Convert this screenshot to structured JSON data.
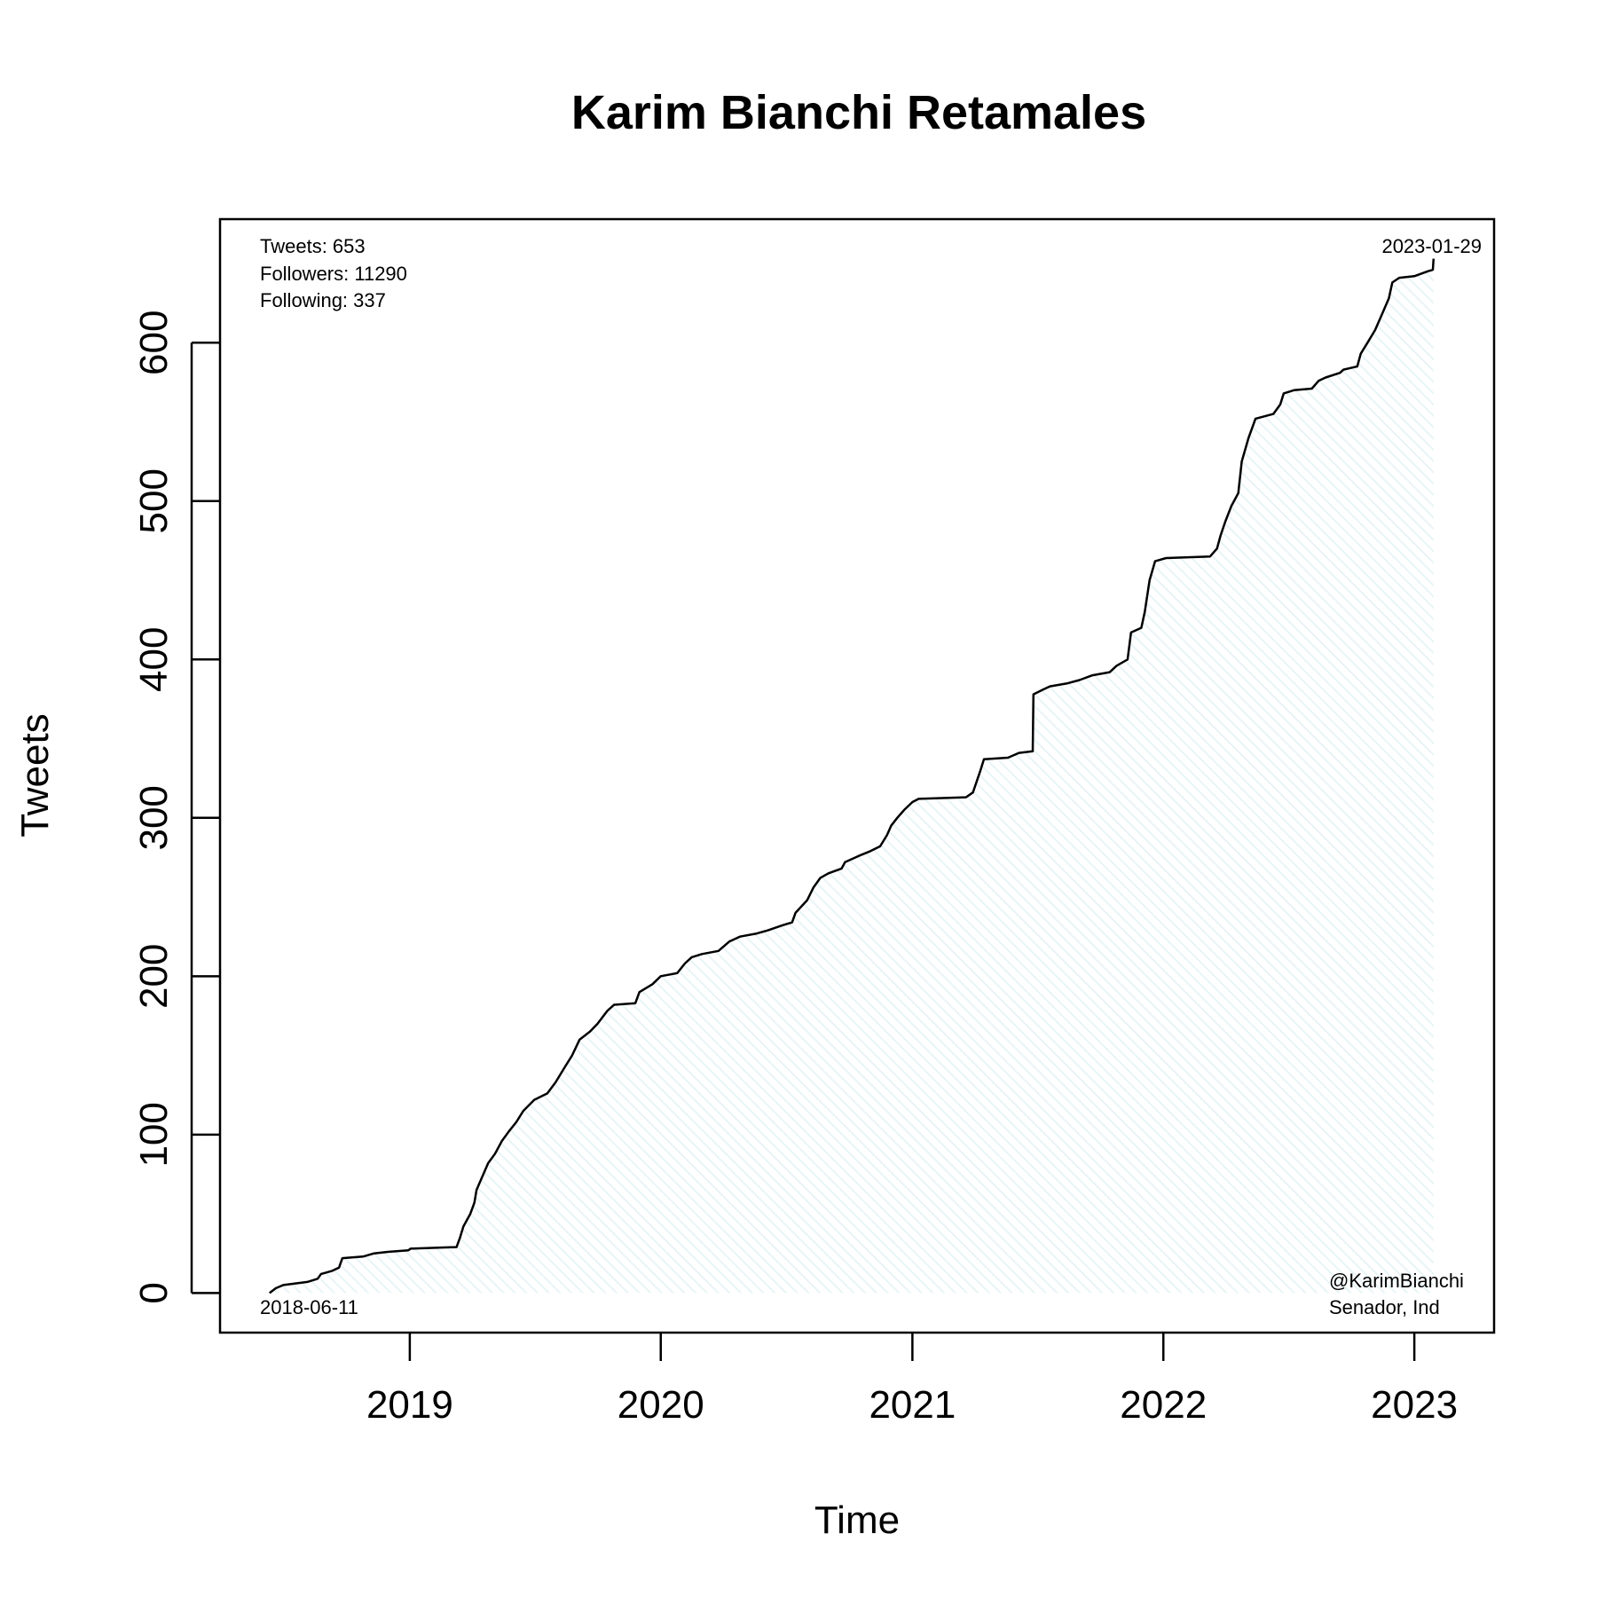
{
  "chart_data": {
    "type": "area",
    "title": "Karim Bianchi Retamales",
    "xlabel": "Time",
    "ylabel": "Tweets",
    "x_ticks": [
      "2019",
      "2020",
      "2021",
      "2022",
      "2023"
    ],
    "y_ticks": [
      0,
      100,
      200,
      300,
      400,
      500,
      600
    ],
    "xlim": [
      "2018-03-31",
      "2023-04-27"
    ],
    "ylim": [
      -25,
      678
    ],
    "grid": false,
    "line_color": "#000000",
    "fill_color": "#e8f4f6",
    "stats": {
      "tweets": "Tweets: 653",
      "followers": "Followers: 11290",
      "following": "Following: 337"
    },
    "start_label": "2018-06-11",
    "end_label": "2023-01-29",
    "handle": "@KarimBianchi",
    "role": "Senador, Ind",
    "series": [
      {
        "points": [
          [
            "2018-06-11",
            0
          ],
          [
            "2018-06-20",
            3
          ],
          [
            "2018-07-01",
            5
          ],
          [
            "2018-08-05",
            7
          ],
          [
            "2018-08-20",
            9
          ],
          [
            "2018-08-25",
            12
          ],
          [
            "2018-09-10",
            14
          ],
          [
            "2018-09-20",
            16
          ],
          [
            "2018-09-25",
            22
          ],
          [
            "2018-10-25",
            23
          ],
          [
            "2018-11-10",
            25
          ],
          [
            "2018-11-30",
            26
          ],
          [
            "2018-12-30",
            27
          ],
          [
            "2019-01-02",
            28
          ],
          [
            "2019-03-10",
            29
          ],
          [
            "2019-03-15",
            35
          ],
          [
            "2019-03-20",
            42
          ],
          [
            "2019-03-30",
            50
          ],
          [
            "2019-04-05",
            57
          ],
          [
            "2019-04-08",
            65
          ],
          [
            "2019-04-15",
            72
          ],
          [
            "2019-04-25",
            82
          ],
          [
            "2019-05-05",
            88
          ],
          [
            "2019-05-15",
            96
          ],
          [
            "2019-05-25",
            102
          ],
          [
            "2019-06-05",
            108
          ],
          [
            "2019-06-15",
            115
          ],
          [
            "2019-07-01",
            122
          ],
          [
            "2019-07-20",
            126
          ],
          [
            "2019-08-01",
            133
          ],
          [
            "2019-08-15",
            143
          ],
          [
            "2019-08-25",
            150
          ],
          [
            "2019-09-05",
            160
          ],
          [
            "2019-09-20",
            165
          ],
          [
            "2019-10-01",
            170
          ],
          [
            "2019-10-15",
            178
          ],
          [
            "2019-10-25",
            182
          ],
          [
            "2019-11-25",
            183
          ],
          [
            "2019-12-01",
            190
          ],
          [
            "2019-12-20",
            195
          ],
          [
            "2020-01-01",
            200
          ],
          [
            "2020-01-25",
            202
          ],
          [
            "2020-02-05",
            208
          ],
          [
            "2020-02-15",
            212
          ],
          [
            "2020-03-01",
            214
          ],
          [
            "2020-03-25",
            216
          ],
          [
            "2020-04-10",
            222
          ],
          [
            "2020-04-25",
            225
          ],
          [
            "2020-05-20",
            227
          ],
          [
            "2020-06-05",
            229
          ],
          [
            "2020-06-25",
            232
          ],
          [
            "2020-07-10",
            234
          ],
          [
            "2020-07-15",
            240
          ],
          [
            "2020-08-01",
            248
          ],
          [
            "2020-08-10",
            256
          ],
          [
            "2020-08-20",
            262
          ],
          [
            "2020-09-01",
            265
          ],
          [
            "2020-09-20",
            268
          ],
          [
            "2020-09-25",
            272
          ],
          [
            "2020-10-15",
            276
          ],
          [
            "2020-11-01",
            279
          ],
          [
            "2020-11-15",
            282
          ],
          [
            "2020-11-25",
            289
          ],
          [
            "2020-12-01",
            295
          ],
          [
            "2020-12-10",
            300
          ],
          [
            "2020-12-20",
            305
          ],
          [
            "2021-01-01",
            310
          ],
          [
            "2021-01-10",
            312
          ],
          [
            "2021-03-20",
            313
          ],
          [
            "2021-03-30",
            316
          ],
          [
            "2021-04-10",
            330
          ],
          [
            "2021-04-15",
            337
          ],
          [
            "2021-05-20",
            338
          ],
          [
            "2021-06-05",
            341
          ],
          [
            "2021-06-25",
            342
          ],
          [
            "2021-06-26",
            378
          ],
          [
            "2021-07-10",
            381
          ],
          [
            "2021-07-20",
            383
          ],
          [
            "2021-08-15",
            385
          ],
          [
            "2021-09-01",
            387
          ],
          [
            "2021-09-20",
            390
          ],
          [
            "2021-10-15",
            392
          ],
          [
            "2021-10-25",
            396
          ],
          [
            "2021-11-10",
            400
          ],
          [
            "2021-11-15",
            417
          ],
          [
            "2021-11-30",
            420
          ],
          [
            "2021-12-05",
            430
          ],
          [
            "2021-12-12",
            450
          ],
          [
            "2021-12-20",
            462
          ],
          [
            "2022-01-05",
            464
          ],
          [
            "2022-03-10",
            465
          ],
          [
            "2022-03-20",
            470
          ],
          [
            "2022-03-25",
            478
          ],
          [
            "2022-04-01",
            487
          ],
          [
            "2022-04-10",
            497
          ],
          [
            "2022-04-20",
            505
          ],
          [
            "2022-04-25",
            525
          ],
          [
            "2022-05-05",
            540
          ],
          [
            "2022-05-15",
            552
          ],
          [
            "2022-06-10",
            555
          ],
          [
            "2022-06-20",
            561
          ],
          [
            "2022-06-25",
            568
          ],
          [
            "2022-07-10",
            570
          ],
          [
            "2022-08-05",
            571
          ],
          [
            "2022-08-15",
            576
          ],
          [
            "2022-08-25",
            578
          ],
          [
            "2022-09-15",
            581
          ],
          [
            "2022-09-20",
            583
          ],
          [
            "2022-10-10",
            585
          ],
          [
            "2022-10-15",
            593
          ],
          [
            "2022-10-25",
            600
          ],
          [
            "2022-11-05",
            608
          ],
          [
            "2022-11-15",
            618
          ],
          [
            "2022-11-25",
            628
          ],
          [
            "2022-11-30",
            638
          ],
          [
            "2022-12-10",
            641
          ],
          [
            "2023-01-01",
            642
          ],
          [
            "2023-01-20",
            645
          ],
          [
            "2023-01-28",
            646
          ],
          [
            "2023-01-29",
            653
          ]
        ]
      }
    ]
  }
}
